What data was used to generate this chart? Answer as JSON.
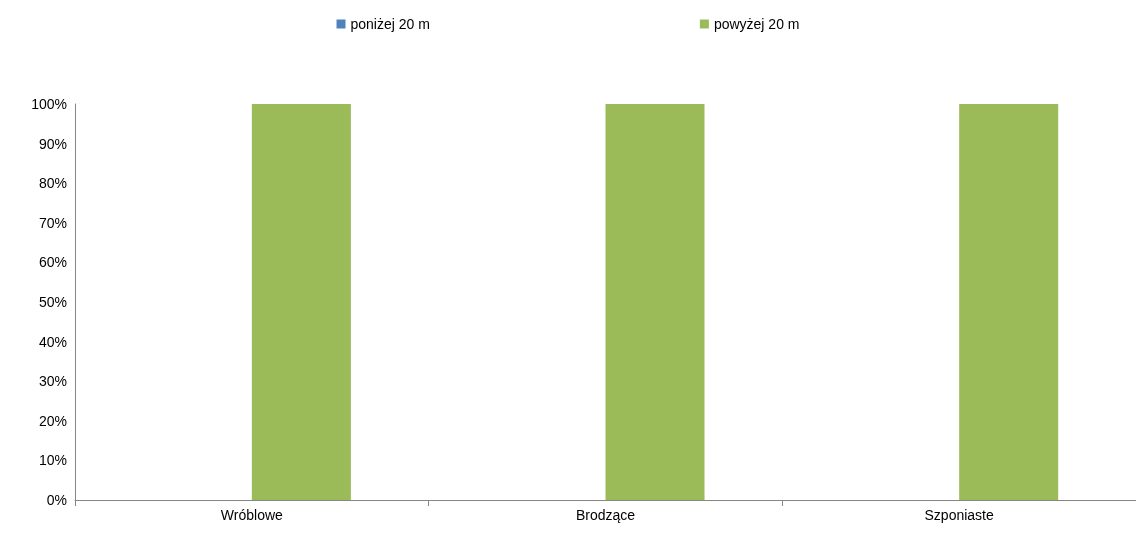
{
  "chart_data": {
    "type": "bar",
    "categories": [
      "Wróblowe",
      "Brodzące",
      "Szponiaste"
    ],
    "series": [
      {
        "name": "poniżej 20 m",
        "color": "#4f81bd",
        "values": [
          0,
          0,
          0
        ]
      },
      {
        "name": "powyżej 20 m",
        "color": "#9bbb59",
        "values": [
          100,
          100,
          100
        ]
      }
    ],
    "ylim": [
      0,
      100
    ],
    "yticks": [
      {
        "value": 0,
        "label": "0%"
      },
      {
        "value": 10,
        "label": "10%"
      },
      {
        "value": 20,
        "label": "20%"
      },
      {
        "value": 30,
        "label": "30%"
      },
      {
        "value": 40,
        "label": "40%"
      },
      {
        "value": 50,
        "label": "50%"
      },
      {
        "value": 60,
        "label": "60%"
      },
      {
        "value": 70,
        "label": "70%"
      },
      {
        "value": 80,
        "label": "80%"
      },
      {
        "value": 90,
        "label": "90%"
      },
      {
        "value": 100,
        "label": "100%"
      }
    ],
    "grid": false,
    "legend": "top"
  }
}
